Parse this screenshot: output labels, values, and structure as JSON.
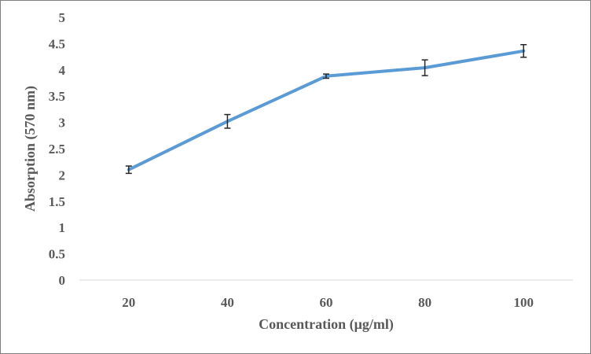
{
  "chart_data": {
    "type": "line",
    "title": "",
    "xlabel": "Concentration (μg/ml)",
    "ylabel": "Absorption (570 nm)",
    "categories": [
      "20",
      "40",
      "60",
      "80",
      "100"
    ],
    "series": [
      {
        "values": [
          2.1,
          3.02,
          3.88,
          4.04,
          4.36
        ],
        "errors": [
          0.07,
          0.13,
          0.04,
          0.15,
          0.12
        ],
        "color": "#5B9BD5"
      }
    ],
    "ylim": [
      0,
      5
    ],
    "yticks": [
      "0",
      "0.5",
      "1",
      "1.5",
      "2",
      "2.5",
      "3",
      "3.5",
      "4",
      "4.5",
      "5"
    ],
    "grid": false,
    "legend": "none"
  },
  "colors": {
    "axis": "#595959",
    "error_bar": "#262626",
    "border": "#7f7f7f"
  }
}
